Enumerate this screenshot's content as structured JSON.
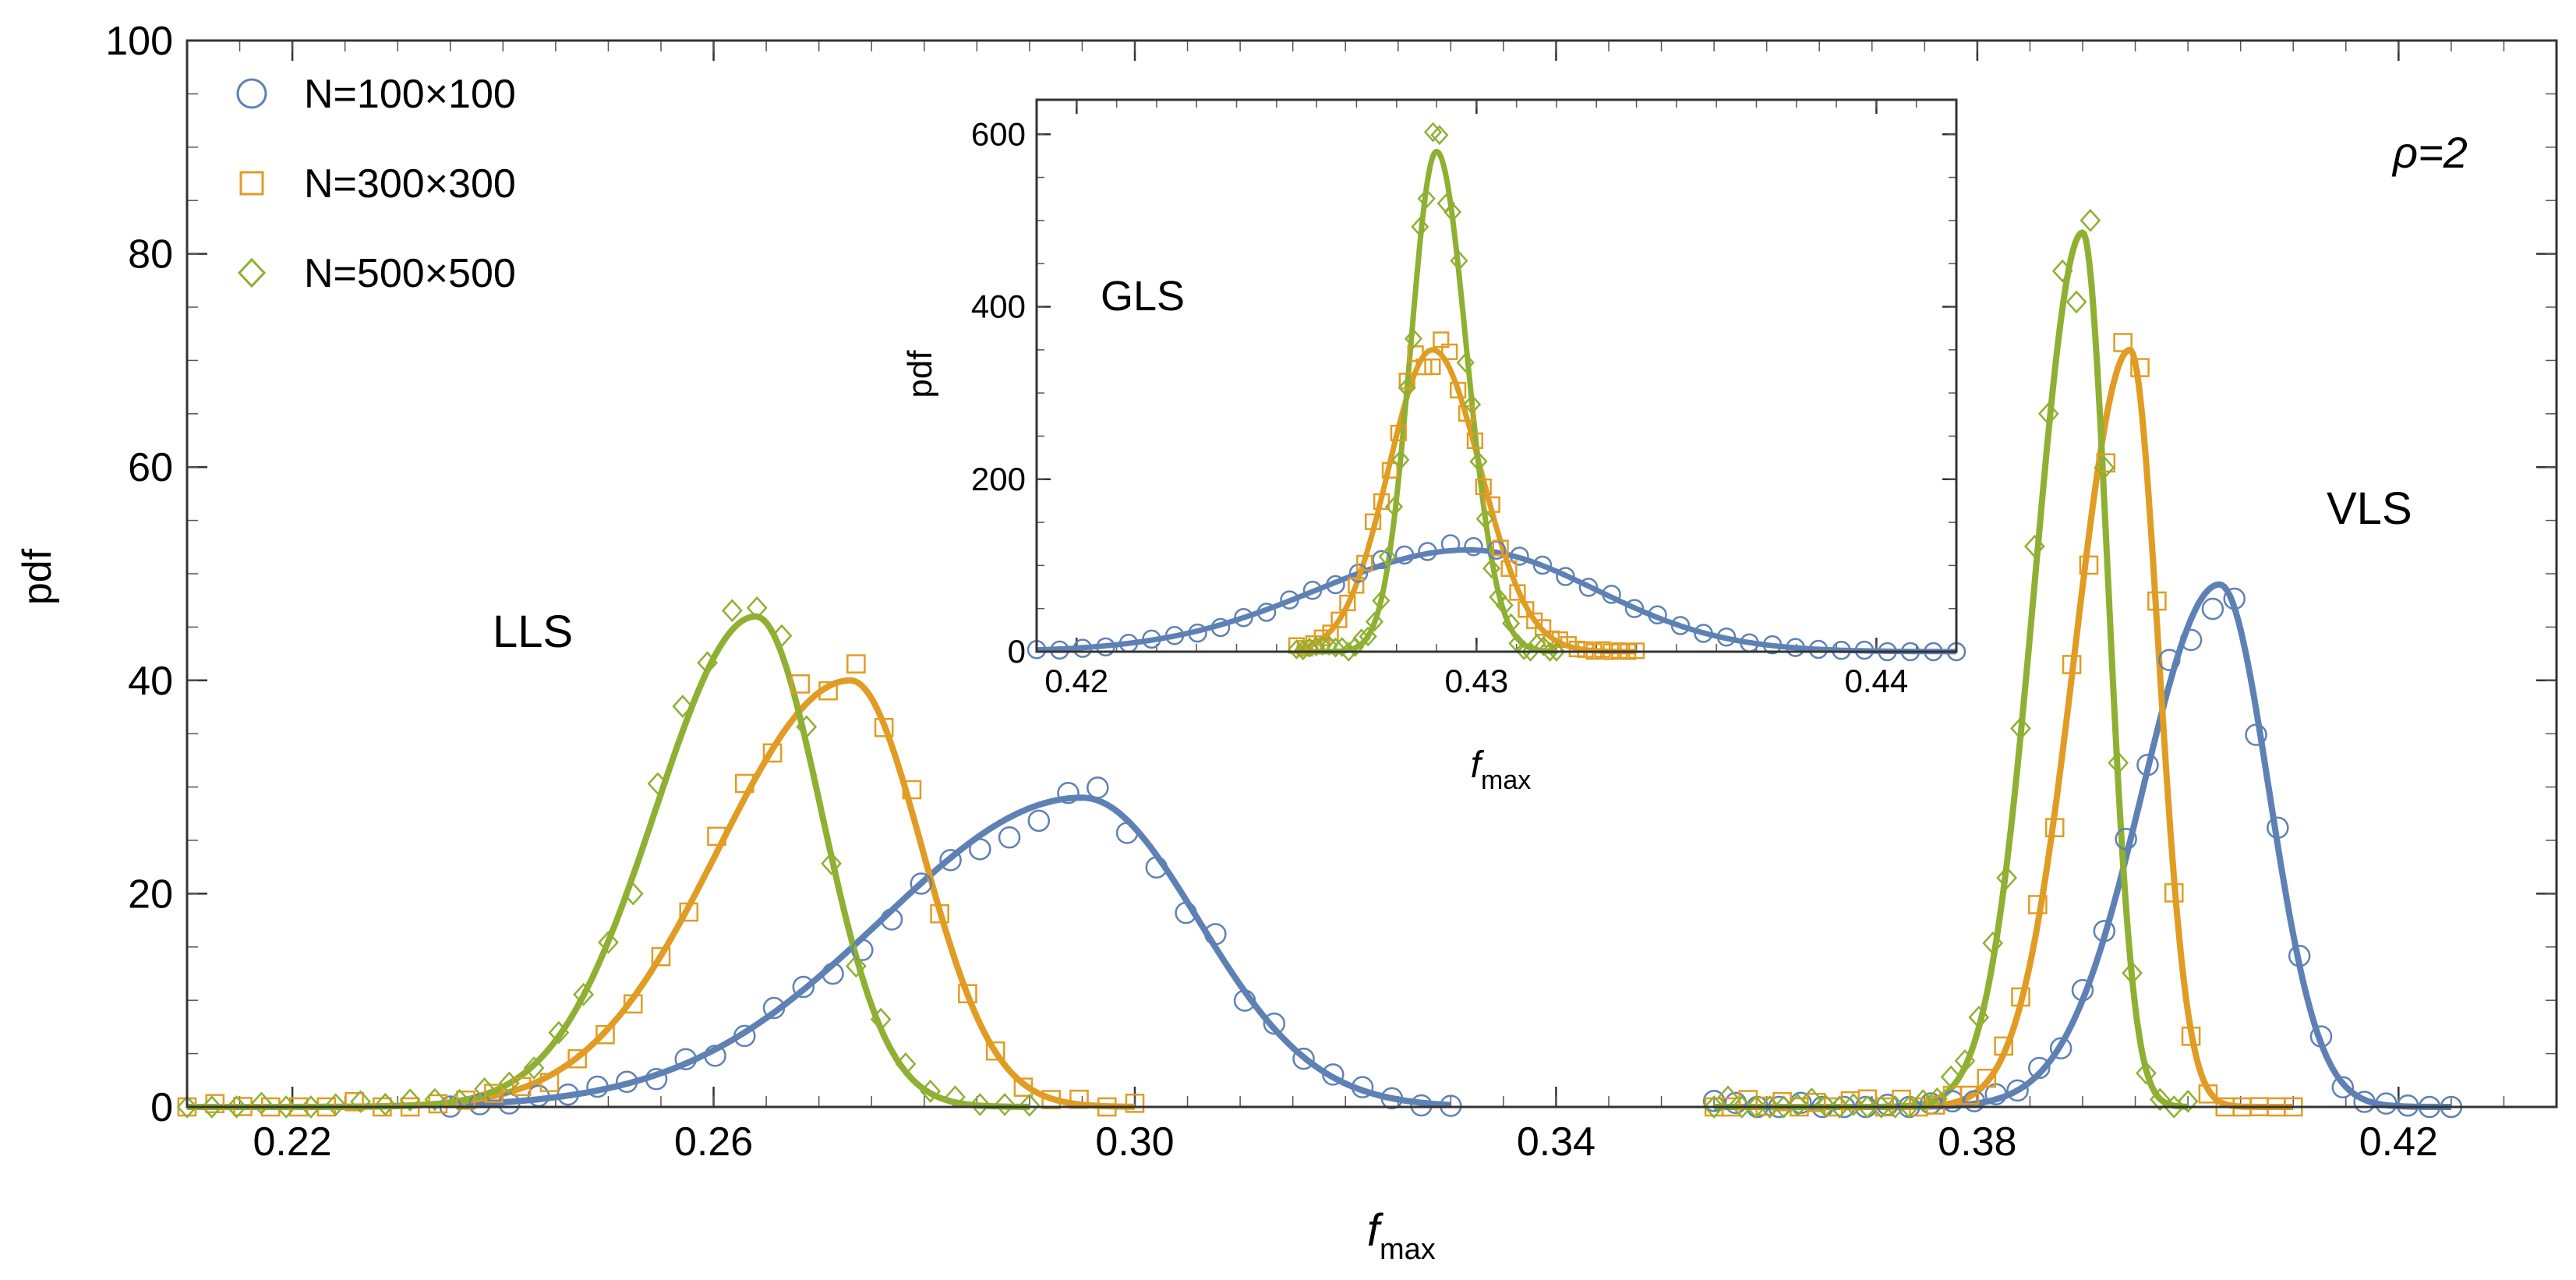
{
  "chart_data": {
    "type": "line",
    "title": "",
    "xlabel": "f",
    "xlabel_sub": "max",
    "ylabel": "pdf",
    "xlim": [
      0.21,
      0.435
    ],
    "ylim": [
      0,
      100
    ],
    "x_ticks": [
      "0.22",
      "0.26",
      "0.30",
      "0.34",
      "0.38",
      "0.42"
    ],
    "y_ticks": [
      "0",
      "20",
      "40",
      "60",
      "80",
      "100"
    ],
    "legend": [
      {
        "label": "N=100×100",
        "marker": "circle",
        "color": "#5e81b5"
      },
      {
        "label": "N=300×300",
        "marker": "square",
        "color": "#e19c24"
      },
      {
        "label": "N=500×500",
        "marker": "diamond",
        "color": "#8fb032"
      }
    ],
    "annotations": {
      "rho": "ρ=2",
      "lls": "LLS",
      "vls": "VLS",
      "gls": "GLS"
    },
    "series": [
      {
        "name": "N=100×100",
        "group": "LLS",
        "fit": {
          "type": "skew-gauss",
          "peak_x": 0.295,
          "peak_y": 29,
          "sigma_left": 0.019,
          "sigma_right": 0.011
        },
        "domain": [
          0.235,
          0.33
        ]
      },
      {
        "name": "N=300×300",
        "group": "LLS",
        "fit": {
          "type": "skew-gauss",
          "peak_x": 0.273,
          "peak_y": 40,
          "sigma_left": 0.0125,
          "sigma_right": 0.0068
        },
        "domain": [
          0.21,
          0.3
        ]
      },
      {
        "name": "N=500×500",
        "group": "LLS",
        "fit": {
          "type": "skew-gauss",
          "peak_x": 0.264,
          "peak_y": 46,
          "sigma_left": 0.0095,
          "sigma_right": 0.0062
        },
        "domain": [
          0.21,
          0.29
        ]
      },
      {
        "name": "N=100×100",
        "group": "VLS",
        "fit": {
          "type": "skew-gauss",
          "peak_x": 0.403,
          "peak_y": 49,
          "sigma_left": 0.0073,
          "sigma_right": 0.0047
        },
        "domain": [
          0.355,
          0.425
        ]
      },
      {
        "name": "N=300×300",
        "group": "VLS",
        "fit": {
          "type": "skew-gauss",
          "peak_x": 0.3945,
          "peak_y": 71,
          "sigma_left": 0.0052,
          "sigma_right": 0.0027
        },
        "domain": [
          0.355,
          0.41
        ]
      },
      {
        "name": "N=500×500",
        "group": "VLS",
        "fit": {
          "type": "skew-gauss",
          "peak_x": 0.39,
          "peak_y": 82,
          "sigma_left": 0.0045,
          "sigma_right": 0.0024
        },
        "domain": [
          0.355,
          0.4
        ]
      }
    ],
    "inset": {
      "xlabel": "f",
      "xlabel_sub": "max",
      "ylabel": "pdf",
      "xlim": [
        0.419,
        0.442
      ],
      "ylim": [
        0,
        640
      ],
      "x_ticks": [
        "0.42",
        "0.43",
        "0.44"
      ],
      "y_ticks": [
        "0",
        "200",
        "400",
        "600"
      ],
      "label": "GLS",
      "series": [
        {
          "name": "N=100×100",
          "fit": {
            "type": "skew-gauss",
            "peak_x": 0.4298,
            "peak_y": 118,
            "sigma_left": 0.0038,
            "sigma_right": 0.0032
          },
          "domain": [
            0.419,
            0.442
          ]
        },
        {
          "name": "N=300×300",
          "fit": {
            "type": "skew-gauss",
            "peak_x": 0.4289,
            "peak_y": 350,
            "sigma_left": 0.0011,
            "sigma_right": 0.0012
          },
          "domain": [
            0.4255,
            0.434
          ]
        },
        {
          "name": "N=500×500",
          "fit": {
            "type": "skew-gauss",
            "peak_x": 0.429,
            "peak_y": 580,
            "sigma_left": 0.00065,
            "sigma_right": 0.00075
          },
          "domain": [
            0.4255,
            0.432
          ]
        }
      ]
    }
  }
}
